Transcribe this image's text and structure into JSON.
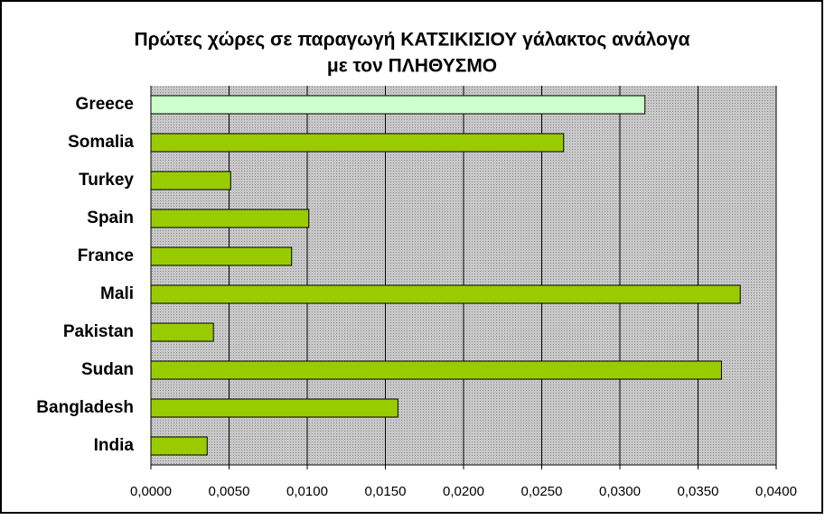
{
  "chart_data": {
    "type": "bar",
    "orientation": "horizontal",
    "title": [
      "Πρώτες χώρες σε παραγωγή ΚΑΤΣΙΚΙΣΙΟΥ γάλακτος ανάλογα",
      "με τον ΠΛΗΘΥΣΜΟ"
    ],
    "categories": [
      "Greece",
      "Somalia",
      "Turkey",
      "Spain",
      "France",
      "Mali",
      "Pakistan",
      "Sudan",
      "Bangladesh",
      "India"
    ],
    "values": [
      0.0316,
      0.0264,
      0.0051,
      0.0101,
      0.009,
      0.0377,
      0.004,
      0.0365,
      0.0158,
      0.0036
    ],
    "colors": [
      "#ccffcc",
      "#99cc00",
      "#99cc00",
      "#99cc00",
      "#99cc00",
      "#99cc00",
      "#99cc00",
      "#99cc00",
      "#99cc00",
      "#99cc00"
    ],
    "xlim": [
      0,
      0.04
    ],
    "xticks": [
      {
        "value": 0,
        "label": "0,0000"
      },
      {
        "value": 0.005,
        "label": "0,0050"
      },
      {
        "value": 0.01,
        "label": "0,0100"
      },
      {
        "value": 0.015,
        "label": "0,0150"
      },
      {
        "value": 0.02,
        "label": "0,0200"
      },
      {
        "value": 0.025,
        "label": "0,0250"
      },
      {
        "value": 0.03,
        "label": "0,0300"
      },
      {
        "value": 0.035,
        "label": "0,0350"
      },
      {
        "value": 0.04,
        "label": "0,0400"
      }
    ],
    "grid": true
  }
}
